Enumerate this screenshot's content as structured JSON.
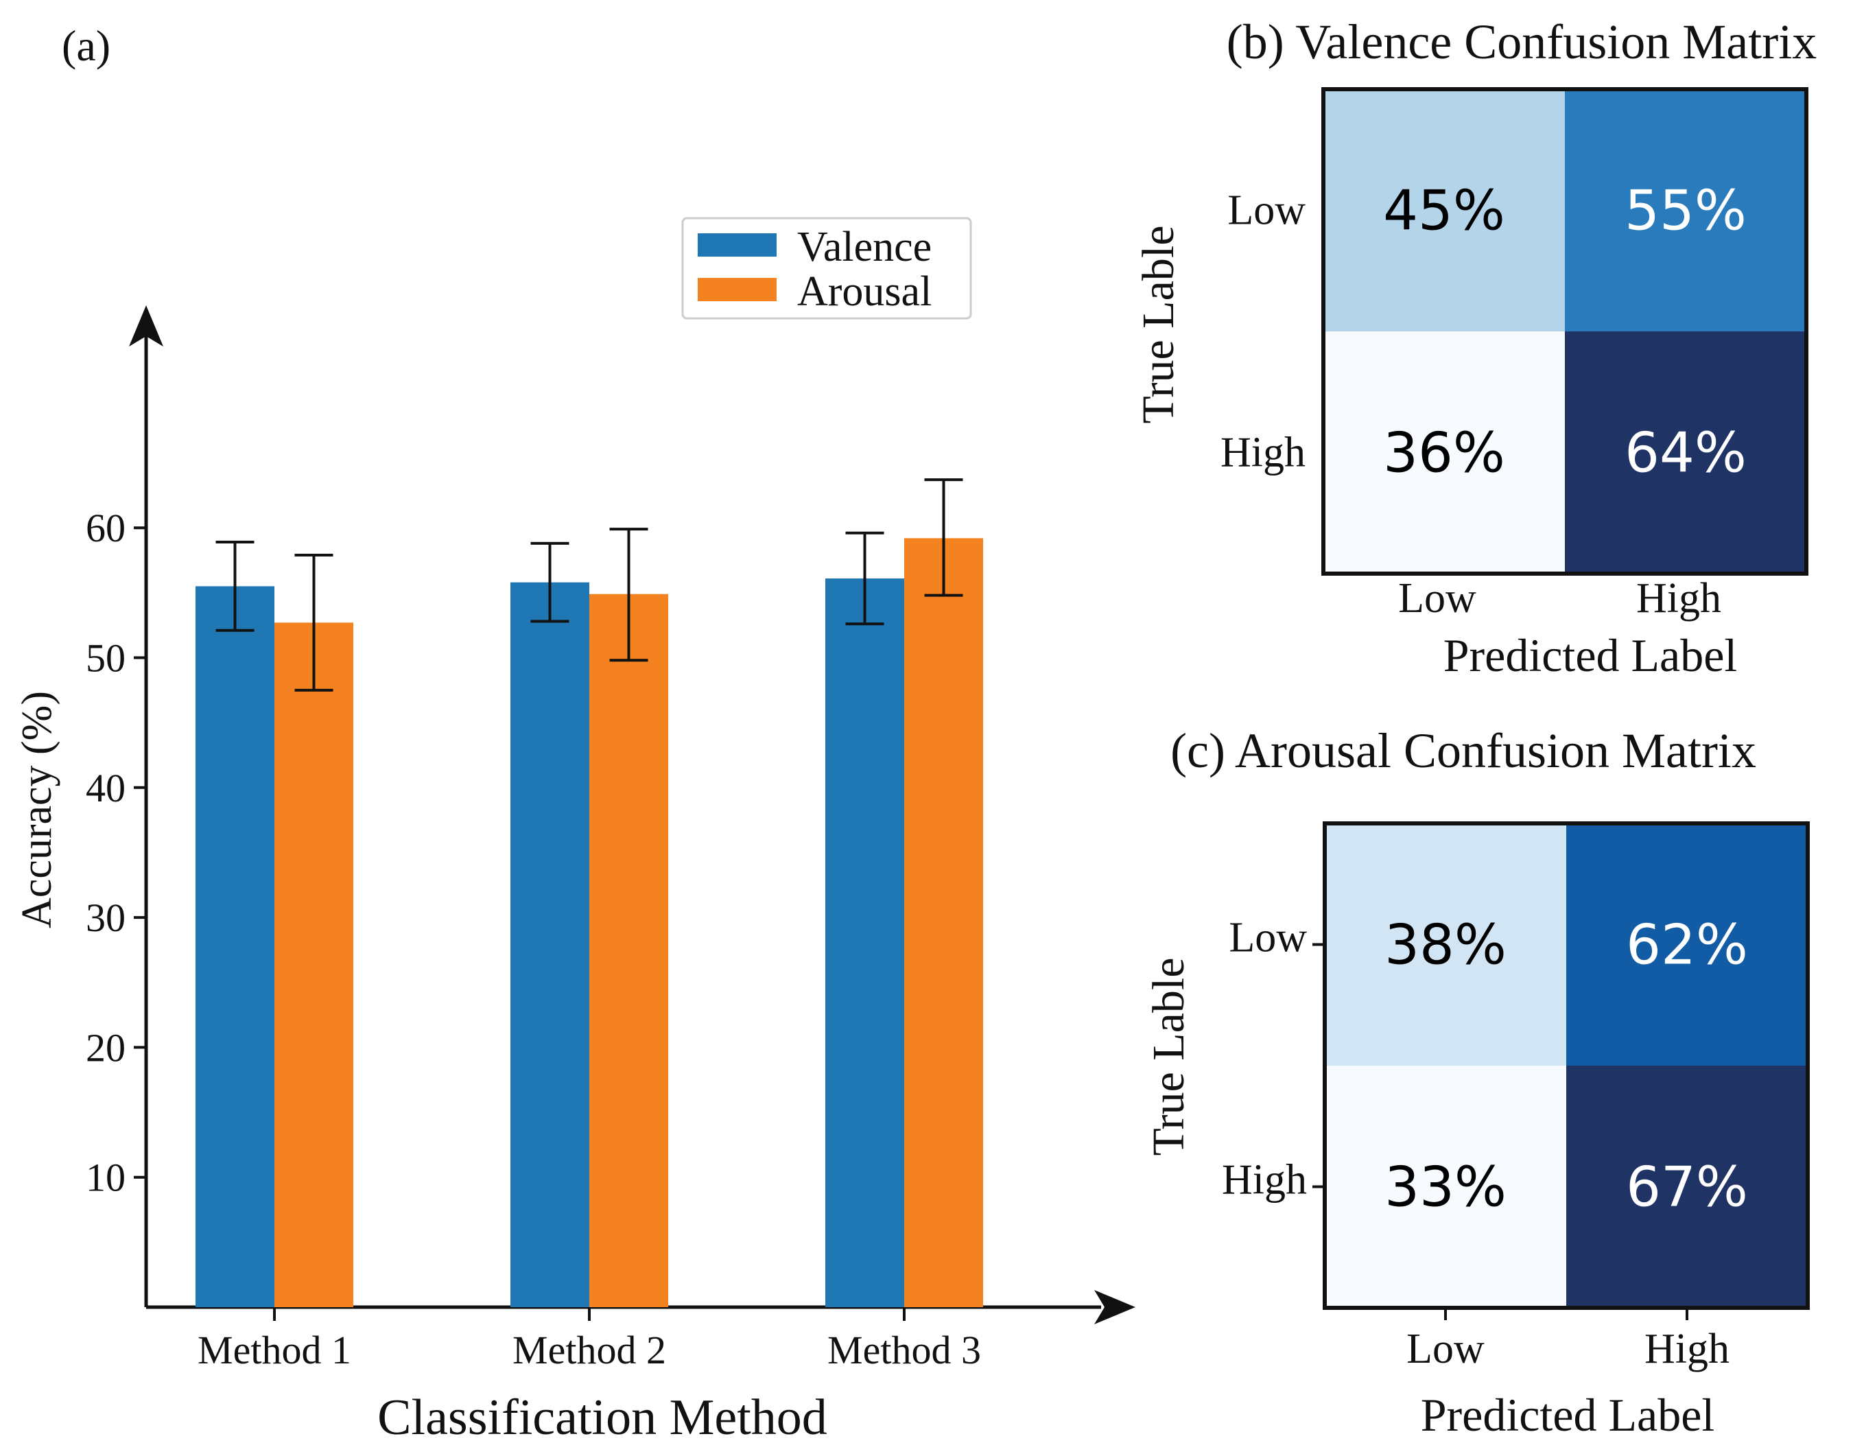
{
  "chart_data": [
    {
      "id": "a",
      "type": "bar",
      "panel_label": "(a)",
      "title": "",
      "xlabel": "Classification Method",
      "ylabel": "Accuracy (%)",
      "categories": [
        "Method 1",
        "Method 2",
        "Method 3"
      ],
      "series": [
        {
          "name": "Valence",
          "color": "#1f77b4",
          "values": [
            55.5,
            55.8,
            56.1
          ],
          "error_low": [
            52.1,
            52.8,
            52.6
          ],
          "error_high": [
            58.9,
            58.8,
            59.6
          ]
        },
        {
          "name": "Arousal",
          "color": "#f58220",
          "values": [
            52.7,
            54.9,
            59.2
          ],
          "error_low": [
            47.5,
            49.8,
            54.8
          ],
          "error_high": [
            57.9,
            59.9,
            63.7
          ]
        }
      ],
      "yticks": [
        "10",
        "20",
        "30",
        "40",
        "50",
        "60"
      ],
      "ylim": [
        0,
        77
      ],
      "legend_position": "top-right",
      "grid": false
    },
    {
      "id": "b",
      "type": "heatmap",
      "title": "(b) Valence Confusion Matrix",
      "xlabel": "Predicted Label",
      "ylabel": "True Lable",
      "xticks": [
        "Low",
        "High"
      ],
      "yticks": [
        "Low",
        "High"
      ],
      "values": [
        [
          45,
          55
        ],
        [
          36,
          64
        ]
      ],
      "labels": [
        [
          "45%",
          "55%"
        ],
        [
          "36%",
          "64%"
        ]
      ],
      "cell_colors": [
        [
          "#b4d4ea",
          "#2a7bbb"
        ],
        [
          "#f7fbff",
          "#1f3364"
        ]
      ],
      "label_colors": [
        [
          "#000000",
          "#ffffff"
        ],
        [
          "#000000",
          "#ffffff"
        ]
      ]
    },
    {
      "id": "c",
      "type": "heatmap",
      "title": "(c) Arousal Confusion Matrix",
      "xlabel": "Predicted Label",
      "ylabel": "True Lable",
      "xticks": [
        "Low",
        "High"
      ],
      "yticks": [
        "Low",
        "High"
      ],
      "values": [
        [
          38,
          62
        ],
        [
          33,
          67
        ]
      ],
      "labels": [
        [
          "38%",
          "62%"
        ],
        [
          "33%",
          "67%"
        ]
      ],
      "cell_colors": [
        [
          "#d2e5f4",
          "#115ca5"
        ],
        [
          "#f7fbff",
          "#1f3364"
        ]
      ],
      "label_colors": [
        [
          "#000000",
          "#ffffff"
        ],
        [
          "#000000",
          "#ffffff"
        ]
      ]
    }
  ]
}
